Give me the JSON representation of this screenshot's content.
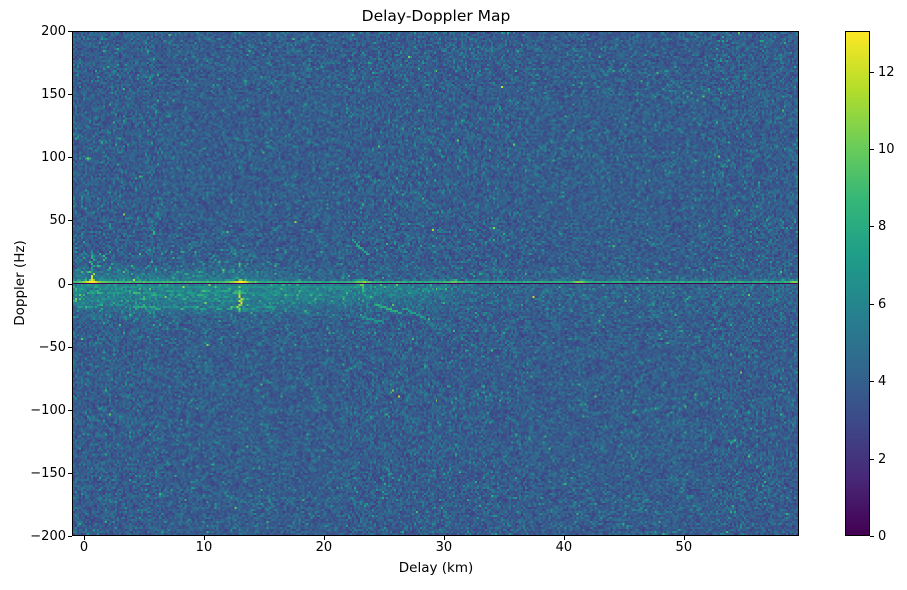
{
  "chart_data": {
    "type": "heatmap",
    "title": "Delay-Doppler Map",
    "xlabel": "Delay (km)",
    "ylabel": "Doppler (Hz)",
    "x_range_km": [
      -1.0,
      59.6
    ],
    "y_range_hz": [
      -200,
      200
    ],
    "x_ticks": [
      0,
      10,
      20,
      30,
      40,
      50
    ],
    "x_tick_labels": [
      "0",
      "10",
      "20",
      "30",
      "40",
      "50"
    ],
    "y_ticks": [
      200,
      150,
      100,
      50,
      0,
      -50,
      -100,
      -150,
      -200
    ],
    "y_tick_labels": [
      "200",
      "150",
      "100",
      "50",
      "0",
      "−50",
      "−100",
      "−150",
      "−200"
    ],
    "grid": false,
    "colormap": "viridis",
    "colorbar": {
      "vmin": 0,
      "vmax": 13.05,
      "ticks": [
        0,
        2,
        4,
        6,
        8,
        10,
        12
      ],
      "tick_labels": [
        "0",
        "2",
        "4",
        "6",
        "8",
        "10",
        "12"
      ],
      "position": "right"
    },
    "noise": {
      "description": "speckled background noise over whole map",
      "floor_value": 4.1,
      "peak_value": 13.05
    },
    "features": [
      {
        "name": "zero-doppler-line",
        "type": "axline",
        "doppler_hz": 0,
        "value": 0.15,
        "color": "#000000"
      },
      {
        "name": "specular-ridge",
        "type": "ridge",
        "doppler_hz": 2.2,
        "delay_km": [
          -1.0,
          59.6
        ],
        "value": 7.8,
        "knots": [
          {
            "delay_km": 0.6,
            "amp": 4.5,
            "sigma": 0.5
          },
          {
            "delay_km": 12.95,
            "amp": 4.2,
            "sigma": 0.45
          },
          {
            "delay_km": 23.3,
            "amp": 2.8,
            "sigma": 0.45
          },
          {
            "delay_km": 30.9,
            "amp": 1.8,
            "sigma": 0.5
          },
          {
            "delay_km": 41.3,
            "amp": 2.4,
            "sigma": 0.5
          },
          {
            "delay_km": 59.4,
            "amp": 2.2,
            "sigma": 0.4
          }
        ]
      },
      {
        "name": "near-ridge-below",
        "type": "hline",
        "doppler_hz": -3.6,
        "delay_km": [
          -1.0,
          26.0
        ],
        "value": 6.2
      },
      {
        "name": "sidelobe-row-upper",
        "type": "dash-row",
        "doppler_hz": -8.0,
        "delay_km": [
          -0.6,
          16.5
        ],
        "value": 6.6
      },
      {
        "name": "sidelobe-row-lower",
        "type": "dash-row",
        "doppler_hz": -19.5,
        "delay_km": [
          -0.6,
          16.0
        ],
        "value": 6.3
      },
      {
        "name": "target-streak-13km",
        "type": "vstreak",
        "delay_km": 12.95,
        "doppler_hz": [
          -24,
          -4
        ],
        "value": 12.6
      },
      {
        "name": "origin-blob",
        "type": "vstreak",
        "delay_km": 0.65,
        "doppler_hz": [
          -1,
          9
        ],
        "value": 12.8
      },
      {
        "name": "origin-plume",
        "type": "vstreak",
        "delay_km": 0.5,
        "doppler_hz": [
          8,
          27
        ],
        "value": 8.8
      },
      {
        "name": "ambiguity-dot-plus100",
        "type": "dot",
        "delay_km": 0.3,
        "doppler_hz": 100,
        "value": 10.2
      },
      {
        "name": "ambiguity-dot-minus100",
        "type": "dot",
        "delay_km": 1.2,
        "doppler_hz": -100,
        "value": 7.6
      },
      {
        "name": "target-streak-23km",
        "type": "vstreak",
        "delay_km": 23.3,
        "doppler_hz": [
          -8,
          5
        ],
        "value": 10.2
      },
      {
        "name": "diag-arc-upper",
        "type": "diag",
        "from": [
          22.4,
          34
        ],
        "to": [
          23.7,
          23
        ],
        "value": 8.3
      },
      {
        "name": "diag-arc-lower-1",
        "type": "diag",
        "from": [
          24.3,
          -17
        ],
        "to": [
          26.4,
          -24
        ],
        "value": 8.6
      },
      {
        "name": "diag-arc-lower-2",
        "type": "diag",
        "from": [
          26.6,
          -20
        ],
        "to": [
          28.2,
          -27
        ],
        "value": 7.8
      },
      {
        "name": "diag-arc-lower-3",
        "type": "diag",
        "from": [
          23.2,
          -27
        ],
        "to": [
          24.9,
          -31
        ],
        "value": 7.4
      }
    ]
  }
}
